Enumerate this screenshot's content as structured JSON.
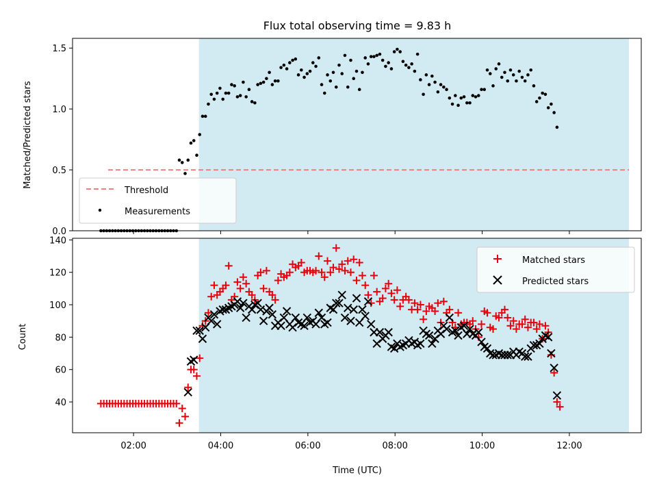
{
  "figure": {
    "title": "Flux total observing time = 9.83 h"
  },
  "colors": {
    "shade": "#d2eaf1",
    "threshold": "#f08080",
    "measurements": "#000000",
    "matched": "#e8000b",
    "predicted": "#000000"
  },
  "chart_data": [
    {
      "type": "scatter",
      "panel": "top",
      "title": "Flux total observing time = 9.83 h",
      "xlabel": "",
      "ylabel": "Matched/Predicted stars",
      "xlim_hours": [
        0.6,
        13.65
      ],
      "ylim": [
        0,
        1.58
      ],
      "yticks": [
        0.0,
        0.5,
        1.0,
        1.5
      ],
      "ytick_labels": [
        "0.0",
        "0.5",
        "1.0",
        "1.5"
      ],
      "grid": false,
      "legend_position": "lower-left",
      "shaded_span": [
        "03:30",
        "13:22"
      ],
      "threshold": {
        "name": "Threshold",
        "y": 0.5,
        "x_start": "01:25",
        "x_end": "13:22",
        "style": "dashed"
      },
      "series": [
        {
          "name": "Measurements",
          "marker": "dot",
          "x_start": "01:15",
          "x_step_minutes": 4,
          "values": [
            0,
            0,
            0,
            0,
            0,
            0,
            0,
            0,
            0,
            0,
            0,
            0,
            0,
            0,
            0,
            0,
            0,
            0,
            0,
            0,
            0,
            0,
            0,
            0,
            0,
            0,
            0,
            0.58,
            0.56,
            0.47,
            0.58,
            0.72,
            0.74,
            0.62,
            0.79,
            0.94,
            0.94,
            1.04,
            1.12,
            1.08,
            1.13,
            1.17,
            1.08,
            1.13,
            1.13,
            1.2,
            1.19,
            1.1,
            1.11,
            1.22,
            1.1,
            1.16,
            1.06,
            1.05,
            1.2,
            1.21,
            1.22,
            1.25,
            1.3,
            1.2,
            1.23,
            1.23,
            1.34,
            1.36,
            1.33,
            1.38,
            1.4,
            1.41,
            1.28,
            1.32,
            1.26,
            1.29,
            1.31,
            1.38,
            1.35,
            1.42,
            1.2,
            1.13,
            1.28,
            1.23,
            1.3,
            1.18,
            1.36,
            1.29,
            1.44,
            1.18,
            1.4,
            1.25,
            1.31,
            1.16,
            1.3,
            1.42,
            1.37,
            1.43,
            1.43,
            1.44,
            1.45,
            1.4,
            1.35,
            1.38,
            1.33,
            1.47,
            1.49,
            1.47,
            1.39,
            1.36,
            1.34,
            1.37,
            1.31,
            1.45,
            1.24,
            1.12,
            1.28,
            1.2,
            1.27,
            1.22,
            1.14,
            1.2,
            1.18,
            1.16,
            1.09,
            1.04,
            1.11,
            1.03,
            1.09,
            1.1,
            1.05,
            1.05,
            1.11,
            1.1,
            1.11,
            1.16,
            1.16,
            1.32,
            1.29,
            1.19,
            1.33,
            1.37,
            1.26,
            1.3,
            1.23,
            1.32,
            1.28,
            1.23,
            1.31,
            1.26,
            1.23,
            1.28,
            1.32,
            1.19,
            1.06,
            1.09,
            1.13,
            1.12,
            1.01,
            1.04,
            0.97,
            0.85
          ]
        }
      ]
    },
    {
      "type": "scatter",
      "panel": "bottom",
      "xlabel": "Time (UTC)",
      "ylabel": "Count",
      "xlim_hours": [
        0.6,
        13.65
      ],
      "ylim": [
        21,
        141
      ],
      "yticks": [
        40,
        60,
        80,
        100,
        120,
        140
      ],
      "ytick_labels": [
        "40",
        "60",
        "80",
        "100",
        "120",
        "140"
      ],
      "xticks": [
        "02:00",
        "04:00",
        "06:00",
        "08:00",
        "10:00",
        "12:00"
      ],
      "grid": false,
      "legend_position": "upper-right",
      "shaded_span": [
        "03:30",
        "13:22"
      ],
      "series": [
        {
          "name": "Matched stars",
          "marker": "plus",
          "x_start": "01:15",
          "x_step_minutes": 4,
          "values": [
            39,
            39,
            39,
            39,
            39,
            39,
            39,
            39,
            39,
            39,
            39,
            39,
            39,
            39,
            39,
            39,
            39,
            39,
            39,
            39,
            39,
            39,
            39,
            39,
            39,
            39,
            39,
            27,
            36,
            31,
            49,
            60,
            60,
            56,
            67,
            87,
            90,
            95,
            105,
            112,
            106,
            108,
            110,
            112,
            124,
            103,
            105,
            114,
            110,
            117,
            113,
            108,
            106,
            103,
            118,
            120,
            110,
            121,
            108,
            106,
            103,
            115,
            119,
            117,
            118,
            120,
            125,
            123,
            124,
            126,
            120,
            121,
            121,
            120,
            121,
            130,
            120,
            117,
            127,
            120,
            123,
            135,
            122,
            125,
            121,
            127,
            120,
            128,
            115,
            126,
            118,
            112,
            106,
            101,
            118,
            108,
            102,
            104,
            110,
            113,
            107,
            103,
            109,
            99,
            103,
            105,
            103,
            97,
            101,
            97,
            100,
            91,
            96,
            99,
            98,
            96,
            101,
            89,
            102,
            95,
            97,
            89,
            86,
            95,
            88,
            89,
            89,
            88,
            90,
            85,
            80,
            88,
            96,
            95,
            86,
            85,
            93,
            92,
            95,
            97,
            92,
            87,
            90,
            85,
            88,
            88,
            91,
            86,
            89,
            89,
            85,
            88,
            79,
            87,
            83,
            69,
            58,
            40,
            37
          ]
        },
        {
          "name": "Predicted stars",
          "marker": "x",
          "x_start": "03:15",
          "x_step_minutes": 4,
          "values": [
            46,
            65,
            66,
            84,
            84,
            79,
            86,
            92,
            90,
            94,
            88,
            96,
            97,
            97,
            98,
            99,
            100,
            102,
            98,
            101,
            92,
            99,
            97,
            100,
            101,
            97,
            90,
            96,
            98,
            94,
            87,
            89,
            87,
            92,
            96,
            88,
            86,
            92,
            89,
            88,
            87,
            92,
            89,
            90,
            88,
            95,
            92,
            88,
            89,
            98,
            97,
            101,
            101,
            106,
            92,
            98,
            90,
            97,
            104,
            89,
            97,
            93,
            102,
            88,
            83,
            76,
            83,
            79,
            81,
            83,
            74,
            73,
            76,
            74,
            75,
            76,
            78,
            76,
            77,
            75,
            76,
            84,
            82,
            81,
            76,
            79,
            84,
            82,
            87,
            85,
            92,
            83,
            84,
            81,
            86,
            87,
            82,
            85,
            82,
            81,
            83,
            77,
            74,
            73,
            70,
            69,
            69,
            70,
            69,
            69,
            69,
            69,
            71,
            69,
            71,
            70,
            68,
            68,
            73,
            75,
            75,
            76,
            79,
            81,
            80,
            70,
            61,
            44
          ]
        }
      ]
    }
  ]
}
